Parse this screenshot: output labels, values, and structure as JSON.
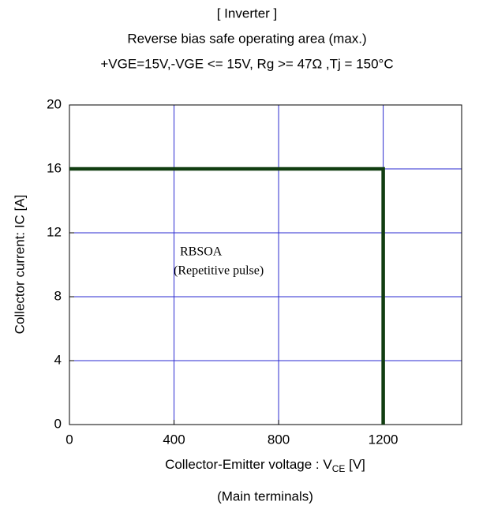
{
  "chart_data": {
    "type": "line",
    "title": [
      "[ Inverter  ]",
      "Reverse bias safe operating area (max.)",
      "+VGE=15V,-VGE <= 15V, Rg >= 47Ω ,Tj = 150°C"
    ],
    "x_label": {
      "text": "Collector-Emitter voltage : V",
      "sub": "CE",
      "after": " [V]"
    },
    "x_note": "(Main terminals)",
    "y_label": "Collector current: IC [A]",
    "annotations": [
      "RBSOA",
      "(Repetitive pulse)"
    ],
    "x": [
      0,
      1200,
      1200
    ],
    "values": [
      16,
      16,
      0
    ],
    "color": "#113d11",
    "xlim": [
      0,
      1500
    ],
    "ylim": [
      0,
      20
    ],
    "xticks": [
      0,
      400,
      800,
      1200
    ],
    "yticks": [
      0,
      4,
      8,
      12,
      16,
      20
    ],
    "grid": true,
    "grid_color": "#2a2ad0"
  }
}
